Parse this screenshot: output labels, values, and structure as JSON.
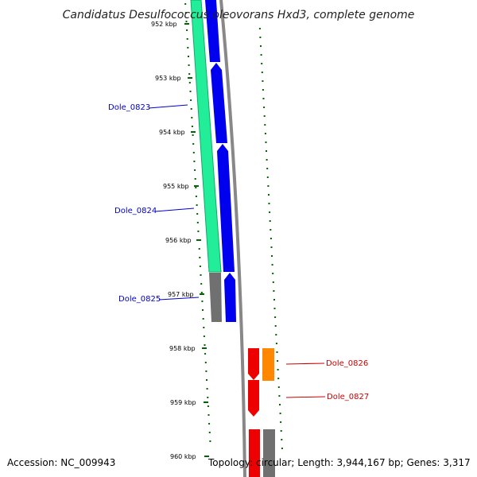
{
  "title": "Candidatus Desulfococcus oleovorans Hxd3, complete genome",
  "ticks": [
    "952 kbp",
    "953 kbp",
    "954 kbp",
    "955 kbp",
    "956 kbp",
    "957 kbp",
    "958 kbp",
    "959 kbp",
    "960 kbp"
  ],
  "gene_labels": {
    "dole_0823": "Dole_0823",
    "dole_0824": "Dole_0824",
    "dole_0825": "Dole_0825",
    "dole_0826": "Dole_0826",
    "dole_0827": "Dole_0827"
  },
  "footer": {
    "accession": "Accession: NC_009943",
    "stats": "Topology: circular; Length: 3,944,167 bp; Genes: 3,317"
  },
  "colors": {
    "cog_green": "#22ee99",
    "cds_blue": "#0000ee",
    "cds_red": "#ee0000",
    "cds_orange": "#ff8800",
    "cds_gray": "#707070",
    "backbone": "#888888",
    "tick_green": "#006600",
    "label_blue": "#0000cc",
    "label_red": "#cc0000"
  }
}
